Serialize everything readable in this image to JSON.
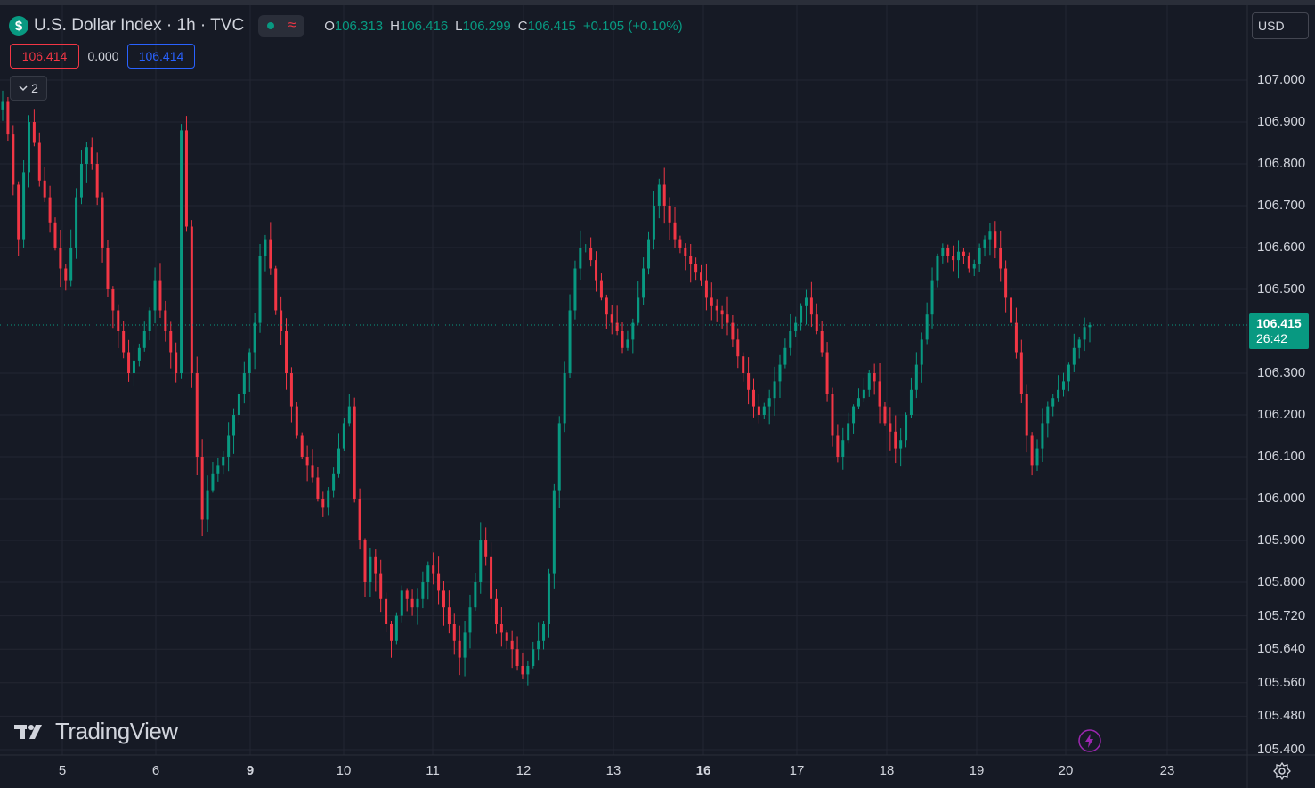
{
  "header": {
    "symbol_title": "U.S. Dollar Index · 1h · TVC",
    "ohlc": [
      {
        "key": "O",
        "value": "106.313"
      },
      {
        "key": "H",
        "value": "106.416"
      },
      {
        "key": "L",
        "value": "106.299"
      },
      {
        "key": "C",
        "value": "106.415"
      }
    ],
    "change": "+0.105 (+0.10%)"
  },
  "quote": {
    "sell": "106.414",
    "spread": "0.000",
    "buy": "106.414"
  },
  "indicators_collapsed_count": "2",
  "currency": "USD",
  "last_price": {
    "value": "106.415",
    "countdown": "26:42"
  },
  "watermark": "TradingView",
  "colors": {
    "background": "#161a25",
    "grid": "#232632",
    "up": "#089981",
    "down": "#f23645",
    "text": "#d1d4dc"
  },
  "chart_data": {
    "type": "candlestick",
    "title": "U.S. Dollar Index · 1h · TVC",
    "y_ticks": [
      "107.000",
      "106.900",
      "106.800",
      "106.700",
      "106.600",
      "106.500",
      "106.415",
      "106.300",
      "106.200",
      "106.100",
      "106.000",
      "105.900",
      "105.800",
      "105.720",
      "105.640",
      "105.560",
      "105.480",
      "105.400"
    ],
    "x_ticks": [
      "5",
      "6",
      "9",
      "10",
      "11",
      "12",
      "13",
      "16",
      "17",
      "18",
      "19",
      "20",
      "23"
    ],
    "ylim": [
      105.4,
      107.11
    ],
    "grid": true,
    "price_series": [
      106.95,
      106.87,
      106.75,
      106.62,
      106.78,
      106.9,
      106.85,
      106.76,
      106.72,
      106.66,
      106.6,
      106.55,
      106.52,
      106.6,
      106.72,
      106.8,
      106.84,
      106.8,
      106.72,
      106.6,
      106.5,
      106.45,
      106.4,
      106.35,
      106.3,
      106.33,
      106.36,
      106.4,
      106.45,
      106.52,
      106.45,
      106.4,
      106.35,
      106.3,
      106.88,
      106.65,
      106.3,
      106.1,
      105.95,
      106.02,
      106.06,
      106.08,
      106.1,
      106.15,
      106.2,
      106.25,
      106.3,
      106.35,
      106.42,
      106.58,
      106.62,
      106.55,
      106.45,
      106.4,
      106.3,
      106.22,
      106.15,
      106.1,
      106.08,
      106.05,
      106.0,
      105.98,
      106.02,
      106.06,
      106.12,
      106.18,
      106.22,
      106.0,
      105.9,
      105.8,
      105.86,
      105.82,
      105.76,
      105.7,
      105.66,
      105.72,
      105.78,
      105.76,
      105.74,
      105.76,
      105.8,
      105.84,
      105.82,
      105.78,
      105.74,
      105.7,
      105.66,
      105.62,
      105.68,
      105.74,
      105.8,
      105.9,
      105.86,
      105.76,
      105.7,
      105.68,
      105.66,
      105.64,
      105.6,
      105.58,
      105.6,
      105.64,
      105.66,
      105.7,
      105.82,
      106.02,
      106.18,
      106.3,
      106.45,
      106.55,
      106.6,
      106.6,
      106.57,
      106.52,
      106.48,
      106.44,
      106.42,
      106.4,
      106.36,
      106.38,
      106.42,
      106.48,
      106.55,
      106.62,
      106.7,
      106.75,
      106.7,
      106.66,
      106.62,
      106.6,
      106.58,
      106.56,
      106.54,
      106.52,
      106.48,
      106.46,
      106.45,
      106.44,
      106.42,
      106.38,
      106.34,
      106.3,
      106.26,
      106.22,
      106.2,
      106.22,
      106.24,
      106.28,
      106.32,
      106.36,
      106.4,
      106.42,
      106.46,
      106.48,
      106.44,
      106.4,
      106.35,
      106.25,
      106.15,
      106.1,
      106.14,
      106.18,
      106.22,
      106.24,
      106.26,
      106.3,
      106.28,
      106.22,
      106.18,
      106.16,
      106.12,
      106.14,
      106.2,
      106.26,
      106.32,
      106.38,
      106.44,
      106.52,
      106.58,
      106.6,
      106.58,
      106.57,
      106.59,
      106.58,
      106.55,
      106.56,
      106.6,
      106.62,
      106.64,
      106.6,
      106.55,
      106.48,
      106.42,
      106.35,
      106.25,
      106.15,
      106.08,
      106.12,
      106.18,
      106.22,
      106.24,
      106.26,
      106.28,
      106.32,
      106.36,
      106.38,
      106.41,
      106.415
    ],
    "last_price": 106.415
  }
}
